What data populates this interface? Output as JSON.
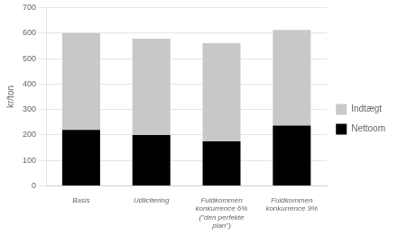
{
  "chart_data": {
    "type": "bar",
    "categories": [
      "Basis",
      "Udlicitering",
      "Fuldkommen\nkonkurrence 6%\n(\"den perfekte\nplan\")",
      "Fuldkommen\nkonkurrence 9%"
    ],
    "series": [
      {
        "name": "Nettoom",
        "color": "#000000",
        "values": [
          220,
          200,
          175,
          237
        ]
      },
      {
        "name": "Indtægt",
        "color": "#c8c8c8",
        "values": [
          380,
          378,
          385,
          375
        ]
      }
    ],
    "stacked": true,
    "ylabel": "kr/ton",
    "ylim": [
      0,
      700
    ],
    "yticks": [
      0,
      100,
      200,
      300,
      400,
      500,
      600,
      700
    ],
    "grid": true,
    "legend": "right"
  }
}
